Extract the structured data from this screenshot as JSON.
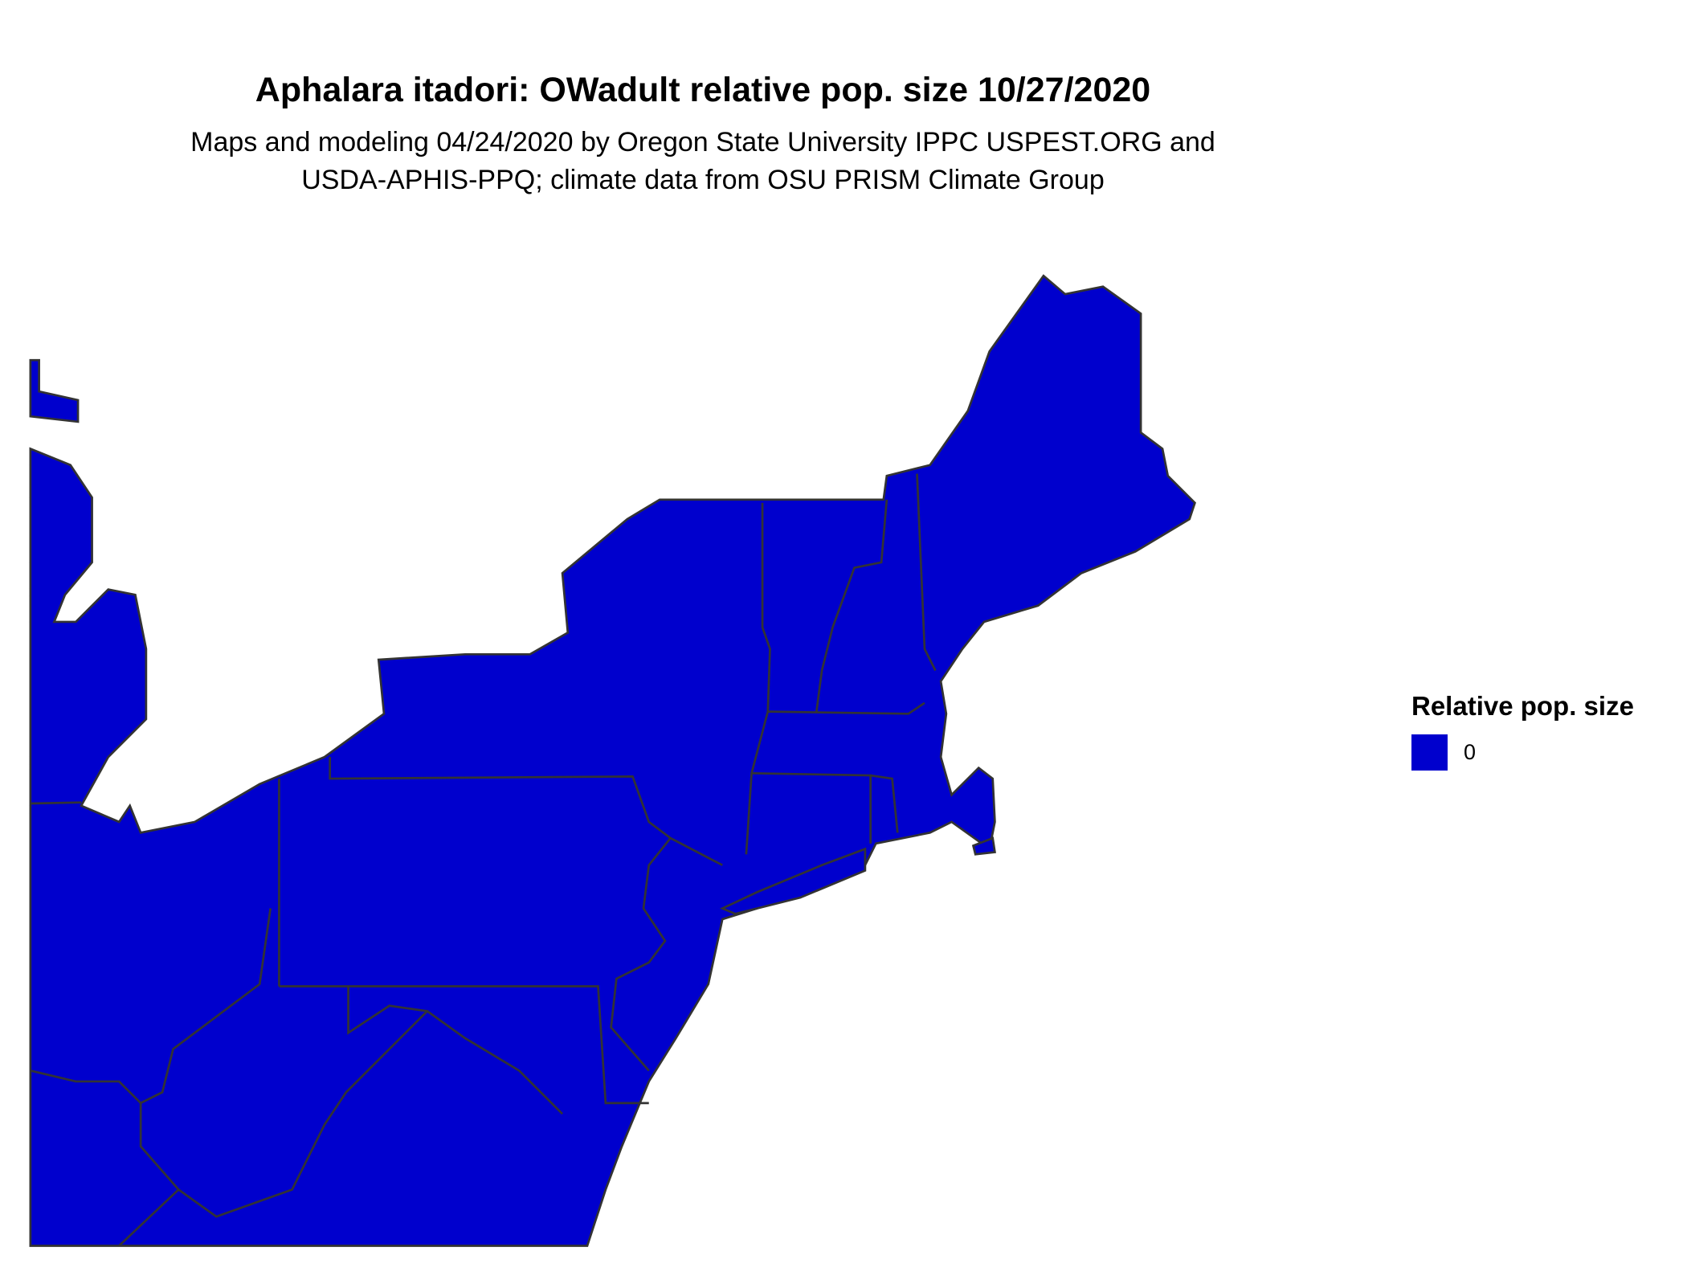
{
  "title": "Aphalara itadori: OWadult relative pop. size 10/27/2020",
  "subtitle_lines": [
    "Maps and modeling 04/24/2020 by Oregon State University IPPC USPEST.ORG and",
    "USDA-APHIS-PPQ; climate data from OSU PRISM Climate Group"
  ],
  "legend": {
    "title": "Relative pop. size",
    "items": [
      {
        "label": "0",
        "color": "#0000CD"
      }
    ]
  },
  "colors": {
    "fill": "#0000CD",
    "border": "#333333"
  },
  "chart_data": {
    "type": "choropleth",
    "region": "Northeastern United States",
    "values": [
      0
    ],
    "legend_placement": "right"
  }
}
